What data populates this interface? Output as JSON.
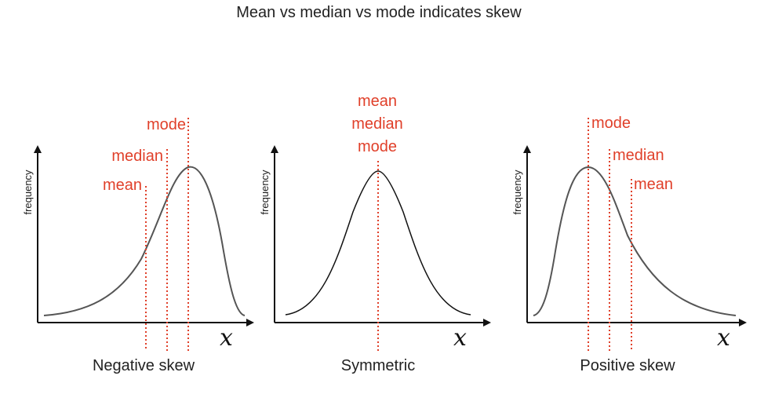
{
  "title": "Mean vs median vs mode indicates skew",
  "colors": {
    "axis": "#111111",
    "curve_skewed": "#555555",
    "curve_symmetric": "#111111",
    "marker": "#e0402a"
  },
  "panels": [
    {
      "id": "negative",
      "caption": "Negative skew",
      "ylabel": "frequency",
      "xlabel": "x",
      "shape": "negative",
      "markers": [
        {
          "label": "mean"
        },
        {
          "label": "median"
        },
        {
          "label": "mode"
        }
      ]
    },
    {
      "id": "symmetric",
      "caption": "Symmetric",
      "ylabel": "frequency",
      "xlabel": "x",
      "shape": "symmetric",
      "stacked_labels": [
        "mean",
        "median",
        "mode"
      ]
    },
    {
      "id": "positive",
      "caption": "Positive skew",
      "ylabel": "frequency",
      "xlabel": "x",
      "shape": "positive",
      "markers": [
        {
          "label": "mode"
        },
        {
          "label": "median"
        },
        {
          "label": "mean"
        }
      ]
    }
  ]
}
